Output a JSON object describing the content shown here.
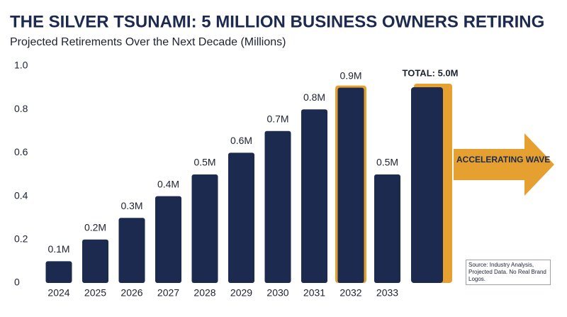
{
  "chart_data": {
    "type": "bar",
    "title": "THE SILVER TSUNAMI: 5 MILLION BUSINESS OWNERS RETIRING",
    "subtitle": "Projected Retirements Over the Next Decade (Millions)",
    "categories": [
      "2024",
      "2025",
      "2026",
      "2027",
      "2028",
      "2029",
      "2030",
      "2031",
      "2032",
      "2033"
    ],
    "values": [
      0.1,
      0.2,
      0.3,
      0.4,
      0.5,
      0.6,
      0.7,
      0.8,
      0.9,
      0.5
    ],
    "value_labels": [
      "0.1M",
      "0.2M",
      "0.3M",
      "0.4M",
      "0.5M",
      "0.6M",
      "0.7M",
      "0.8M",
      "0.9M",
      "0.5M"
    ],
    "color": "#1b2a4e",
    "highlight_color": "#e5a02f",
    "highlight_categories": [
      "2032"
    ],
    "ylim": [
      0,
      1
    ],
    "yticks": [
      0,
      0.2,
      0.4,
      0.6,
      0.8,
      {
        "value": 1,
        "label": "1.0"
      }
    ],
    "grid": false,
    "total_label": "TOTAL: 5.0M",
    "arrow_label": "ACCELERATING WAVE",
    "source": "Source: Industry Analysis, Projected Data. No Real Brand Logos."
  }
}
